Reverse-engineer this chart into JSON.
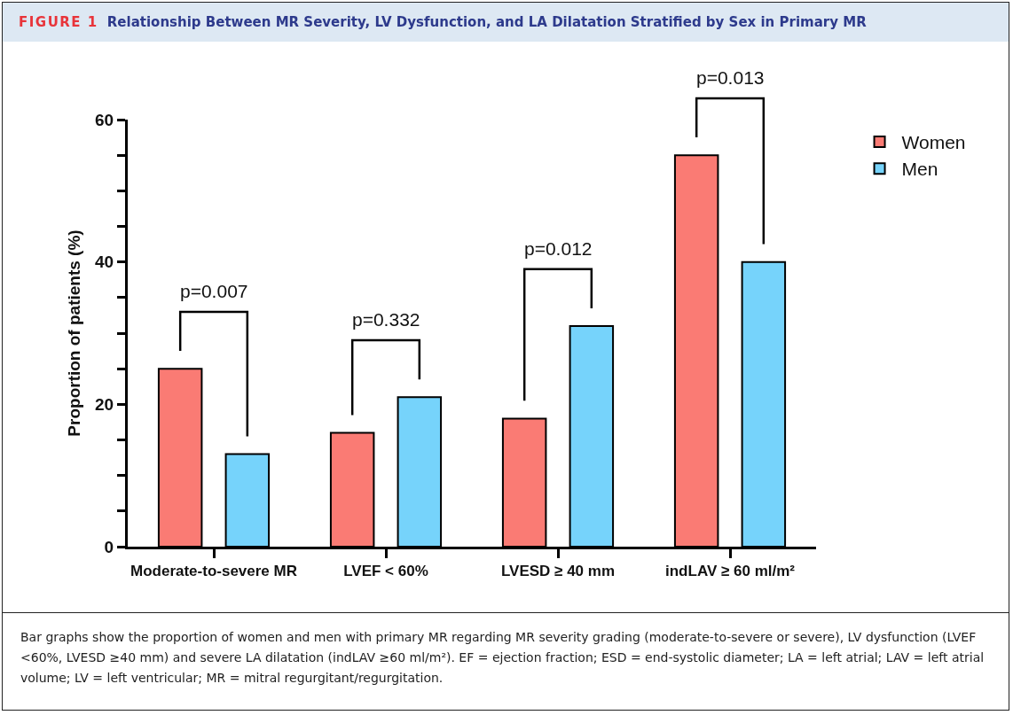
{
  "chart_data": {
    "type": "bar",
    "title": "FIGURE 1",
    "subtitle": "Relationship Between MR Severity, LV Dysfunction, and LA Dilatation Stratified by Sex in Primary MR",
    "ylabel": "Proportion of patients (%)",
    "categories": [
      "Moderate-to-severe MR",
      "LVEF < 60%",
      "LVESD ≥ 40 mm",
      "indLAV ≥ 60 ml/m²"
    ],
    "series": [
      {
        "name": "Women",
        "color": "#fa7b74",
        "values": [
          25,
          16,
          18,
          55
        ]
      },
      {
        "name": "Men",
        "color": "#76d3fb",
        "values": [
          13,
          21,
          31,
          40
        ]
      }
    ],
    "ylim": [
      0,
      60
    ],
    "yticks": [
      0,
      {
        "value": 5,
        "label": null
      },
      {
        "value": 10,
        "label": null
      },
      {
        "value": 15,
        "label": null
      },
      20,
      {
        "value": 25,
        "label": null
      },
      {
        "value": 30,
        "label": null
      },
      {
        "value": 35,
        "label": null
      },
      40,
      {
        "value": 45,
        "label": null
      },
      {
        "value": 50,
        "label": null
      },
      {
        "value": 55,
        "label": null
      },
      60
    ],
    "grid": false,
    "legend": "top right",
    "annotations": [
      "p=0.007",
      "p=0.332",
      "p=0.012",
      "p=0.013",
      "Bar graphs show the proportion of women and men with primary MR regarding MR severity grading (moderate-to-severe or severe), LV dysfunction (LVEF <60%, LVESD ≥40 mm) and severe LA dilatation (indLAV ≥60 ml/m²). EF = ejection fraction; ESD = end-systolic diameter; LA = left atrial; LAV = left atrial volume; LV = left ventricular; MR = mitral regurgitant/regurgitation."
    ]
  }
}
